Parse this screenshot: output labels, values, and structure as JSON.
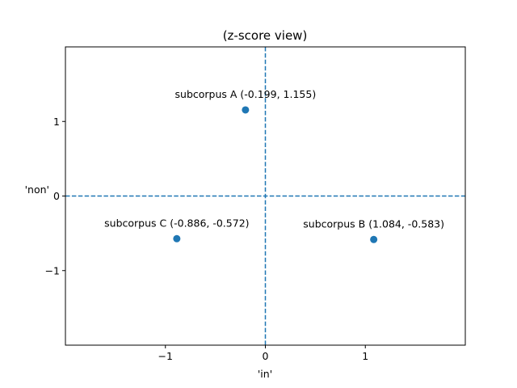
{
  "chart_data": {
    "type": "scatter",
    "title": "(z-score view)",
    "xlabel": "'in'",
    "ylabel": "'non'",
    "xlim": [
      -2.0,
      2.0
    ],
    "ylim": [
      -2.0,
      2.0
    ],
    "xticks": [
      -1,
      0,
      1
    ],
    "yticks": [
      -1,
      0,
      1
    ],
    "xtick_labels": [
      "−1",
      "0",
      "1"
    ],
    "ytick_labels": [
      "−1",
      "0",
      "1"
    ],
    "reference_lines": {
      "x": 0,
      "y": 0,
      "style": "dashed"
    },
    "grid": false,
    "color": "#1f77b4",
    "points": [
      {
        "label": "subcorpus A (-0.199, 1.155)",
        "x": -0.199,
        "y": 1.155
      },
      {
        "label": "subcorpus B (1.084, -0.583)",
        "x": 1.084,
        "y": -0.583
      },
      {
        "label": "subcorpus C (-0.886, -0.572)",
        "x": -0.886,
        "y": -0.572
      }
    ]
  }
}
